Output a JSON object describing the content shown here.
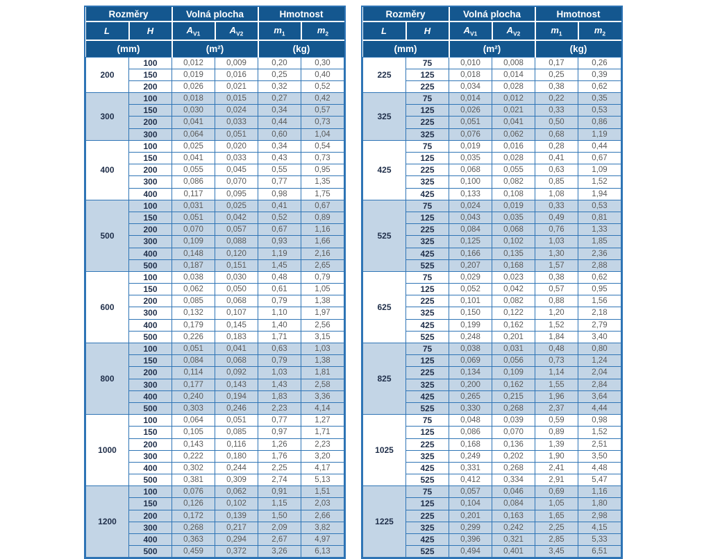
{
  "colors": {
    "header-bg": "#14578f",
    "border-blue": "#2e74b5",
    "band-bg": "#c3d5e6",
    "value-text": "#595959",
    "dim-text": "#1f2e49"
  },
  "header": {
    "group_dimensions": "Rozměry",
    "group_free_area": "Volná plocha",
    "group_weight": "Hmotnost",
    "col_L": "L",
    "col_H": "H",
    "col_A_base": "A",
    "col_A_sub1": "V1",
    "col_A_sub2": "V2",
    "col_m_base": "m",
    "col_m_sub1": "1",
    "col_m_sub2": "2",
    "unit_mm": "(mm)",
    "unit_m2": "(m²)",
    "unit_kg": "(kg)"
  },
  "tables": [
    {
      "groups": [
        {
          "L": "200",
          "rows": [
            [
              "100",
              "0,012",
              "0,009",
              "0,20",
              "0,30"
            ],
            [
              "150",
              "0,019",
              "0,016",
              "0,25",
              "0,40"
            ],
            [
              "200",
              "0,026",
              "0,021",
              "0,32",
              "0,52"
            ]
          ]
        },
        {
          "L": "300",
          "rows": [
            [
              "100",
              "0,018",
              "0,015",
              "0,27",
              "0,42"
            ],
            [
              "150",
              "0,030",
              "0,024",
              "0,34",
              "0,57"
            ],
            [
              "200",
              "0,041",
              "0,033",
              "0,44",
              "0,73"
            ],
            [
              "300",
              "0,064",
              "0,051",
              "0,60",
              "1,04"
            ]
          ]
        },
        {
          "L": "400",
          "rows": [
            [
              "100",
              "0,025",
              "0,020",
              "0,34",
              "0,54"
            ],
            [
              "150",
              "0,041",
              "0,033",
              "0,43",
              "0,73"
            ],
            [
              "200",
              "0,055",
              "0,045",
              "0,55",
              "0,95"
            ],
            [
              "300",
              "0,086",
              "0,070",
              "0,77",
              "1,35"
            ],
            [
              "400",
              "0,117",
              "0,095",
              "0,98",
              "1,75"
            ]
          ]
        },
        {
          "L": "500",
          "rows": [
            [
              "100",
              "0,031",
              "0,025",
              "0,41",
              "0,67"
            ],
            [
              "150",
              "0,051",
              "0,042",
              "0,52",
              "0,89"
            ],
            [
              "200",
              "0,070",
              "0,057",
              "0,67",
              "1,16"
            ],
            [
              "300",
              "0,109",
              "0,088",
              "0,93",
              "1,66"
            ],
            [
              "400",
              "0,148",
              "0,120",
              "1,19",
              "2,16"
            ],
            [
              "500",
              "0,187",
              "0,151",
              "1,45",
              "2,65"
            ]
          ]
        },
        {
          "L": "600",
          "rows": [
            [
              "100",
              "0,038",
              "0,030",
              "0,48",
              "0,79"
            ],
            [
              "150",
              "0,062",
              "0,050",
              "0,61",
              "1,05"
            ],
            [
              "200",
              "0,085",
              "0,068",
              "0,79",
              "1,38"
            ],
            [
              "300",
              "0,132",
              "0,107",
              "1,10",
              "1,97"
            ],
            [
              "400",
              "0,179",
              "0,145",
              "1,40",
              "2,56"
            ],
            [
              "500",
              "0,226",
              "0,183",
              "1,71",
              "3,15"
            ]
          ]
        },
        {
          "L": "800",
          "rows": [
            [
              "100",
              "0,051",
              "0,041",
              "0,63",
              "1,03"
            ],
            [
              "150",
              "0,084",
              "0,068",
              "0,79",
              "1,38"
            ],
            [
              "200",
              "0,114",
              "0,092",
              "1,03",
              "1,81"
            ],
            [
              "300",
              "0,177",
              "0,143",
              "1,43",
              "2,58"
            ],
            [
              "400",
              "0,240",
              "0,194",
              "1,83",
              "3,36"
            ],
            [
              "500",
              "0,303",
              "0,246",
              "2,23",
              "4,14"
            ]
          ]
        },
        {
          "L": "1000",
          "rows": [
            [
              "100",
              "0,064",
              "0,051",
              "0,77",
              "1,27"
            ],
            [
              "150",
              "0,105",
              "0,085",
              "0,97",
              "1,71"
            ],
            [
              "200",
              "0,143",
              "0,116",
              "1,26",
              "2,23"
            ],
            [
              "300",
              "0,222",
              "0,180",
              "1,76",
              "3,20"
            ],
            [
              "400",
              "0,302",
              "0,244",
              "2,25",
              "4,17"
            ],
            [
              "500",
              "0,381",
              "0,309",
              "2,74",
              "5,13"
            ]
          ]
        },
        {
          "L": "1200",
          "rows": [
            [
              "100",
              "0,076",
              "0,062",
              "0,91",
              "1,51"
            ],
            [
              "150",
              "0,126",
              "0,102",
              "1,15",
              "2,03"
            ],
            [
              "200",
              "0,172",
              "0,139",
              "1,50",
              "2,66"
            ],
            [
              "300",
              "0,268",
              "0,217",
              "2,09",
              "3,82"
            ],
            [
              "400",
              "0,363",
              "0,294",
              "2,67",
              "4,97"
            ],
            [
              "500",
              "0,459",
              "0,372",
              "3,26",
              "6,13"
            ]
          ]
        }
      ]
    },
    {
      "groups": [
        {
          "L": "225",
          "rows": [
            [
              "75",
              "0,010",
              "0,008",
              "0,17",
              "0,26"
            ],
            [
              "125",
              "0,018",
              "0,014",
              "0,25",
              "0,39"
            ],
            [
              "225",
              "0,034",
              "0,028",
              "0,38",
              "0,62"
            ]
          ]
        },
        {
          "L": "325",
          "rows": [
            [
              "75",
              "0,014",
              "0,012",
              "0,22",
              "0,35"
            ],
            [
              "125",
              "0,026",
              "0,021",
              "0,33",
              "0,53"
            ],
            [
              "225",
              "0,051",
              "0,041",
              "0,50",
              "0,86"
            ],
            [
              "325",
              "0,076",
              "0,062",
              "0,68",
              "1,19"
            ]
          ]
        },
        {
          "L": "425",
          "rows": [
            [
              "75",
              "0,019",
              "0,016",
              "0,28",
              "0,44"
            ],
            [
              "125",
              "0,035",
              "0,028",
              "0,41",
              "0,67"
            ],
            [
              "225",
              "0,068",
              "0,055",
              "0,63",
              "1,09"
            ],
            [
              "325",
              "0,100",
              "0,082",
              "0,85",
              "1,52"
            ],
            [
              "425",
              "0,133",
              "0,108",
              "1,08",
              "1,94"
            ]
          ]
        },
        {
          "L": "525",
          "rows": [
            [
              "75",
              "0,024",
              "0,019",
              "0,33",
              "0,53"
            ],
            [
              "125",
              "0,043",
              "0,035",
              "0,49",
              "0,81"
            ],
            [
              "225",
              "0,084",
              "0,068",
              "0,76",
              "1,33"
            ],
            [
              "325",
              "0,125",
              "0,102",
              "1,03",
              "1,85"
            ],
            [
              "425",
              "0,166",
              "0,135",
              "1,30",
              "2,36"
            ],
            [
              "525",
              "0,207",
              "0,168",
              "1,57",
              "2,88"
            ]
          ]
        },
        {
          "L": "625",
          "rows": [
            [
              "75",
              "0,029",
              "0,023",
              "0,38",
              "0,62"
            ],
            [
              "125",
              "0,052",
              "0,042",
              "0,57",
              "0,95"
            ],
            [
              "225",
              "0,101",
              "0,082",
              "0,88",
              "1,56"
            ],
            [
              "325",
              "0,150",
              "0,122",
              "1,20",
              "2,18"
            ],
            [
              "425",
              "0,199",
              "0,162",
              "1,52",
              "2,79"
            ],
            [
              "525",
              "0,248",
              "0,201",
              "1,84",
              "3,40"
            ]
          ]
        },
        {
          "L": "825",
          "rows": [
            [
              "75",
              "0,038",
              "0,031",
              "0,48",
              "0,80"
            ],
            [
              "125",
              "0,069",
              "0,056",
              "0,73",
              "1,24"
            ],
            [
              "225",
              "0,134",
              "0,109",
              "1,14",
              "2,04"
            ],
            [
              "325",
              "0,200",
              "0,162",
              "1,55",
              "2,84"
            ],
            [
              "425",
              "0,265",
              "0,215",
              "1,96",
              "3,64"
            ],
            [
              "525",
              "0,330",
              "0,268",
              "2,37",
              "4,44"
            ]
          ]
        },
        {
          "L": "1025",
          "rows": [
            [
              "75",
              "0,048",
              "0,039",
              "0,59",
              "0,98"
            ],
            [
              "125",
              "0,086",
              "0,070",
              "0,89",
              "1,52"
            ],
            [
              "225",
              "0,168",
              "0,136",
              "1,39",
              "2,51"
            ],
            [
              "325",
              "0,249",
              "0,202",
              "1,90",
              "3,50"
            ],
            [
              "425",
              "0,331",
              "0,268",
              "2,41",
              "4,48"
            ],
            [
              "525",
              "0,412",
              "0,334",
              "2,91",
              "5,47"
            ]
          ]
        },
        {
          "L": "1225",
          "rows": [
            [
              "75",
              "0,057",
              "0,046",
              "0,69",
              "1,16"
            ],
            [
              "125",
              "0,104",
              "0,084",
              "1,05",
              "1,80"
            ],
            [
              "225",
              "0,201",
              "0,163",
              "1,65",
              "2,98"
            ],
            [
              "325",
              "0,299",
              "0,242",
              "2,25",
              "4,15"
            ],
            [
              "425",
              "0,396",
              "0,321",
              "2,85",
              "5,33"
            ],
            [
              "525",
              "0,494",
              "0,401",
              "3,45",
              "6,51"
            ]
          ]
        }
      ]
    }
  ]
}
